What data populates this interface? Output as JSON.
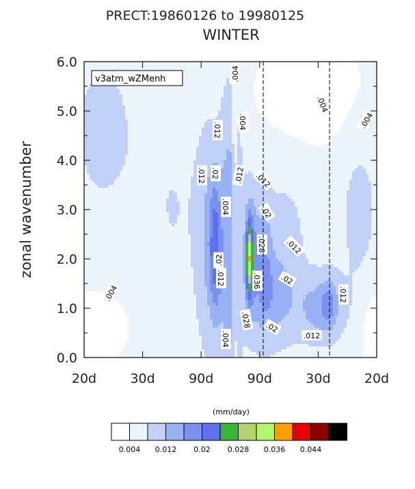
{
  "chart_data": {
    "type": "contour",
    "title": "PRECT:19860126 to 19980125",
    "subtitle": "WINTER",
    "case_label": "v3atm_wZMenh",
    "ylabel": "zonal wavenumber",
    "xlabel": "",
    "ylim": [
      0.0,
      6.0
    ],
    "yticks": [
      "0.0",
      "1.0",
      "2.0",
      "3.0",
      "4.0",
      "5.0",
      "6.0"
    ],
    "xticks": [
      "20d",
      "30d",
      "90d",
      "90d",
      "30d",
      "20d"
    ],
    "colorbar_units": "(mm/day)",
    "colorbar_labels": [
      "0.004",
      "0.012",
      "0.02",
      "0.028",
      "0.036",
      "0.044"
    ],
    "levels": [
      0.004,
      0.008,
      0.012,
      0.016,
      0.02,
      0.024,
      0.028,
      0.032,
      0.036,
      0.04,
      0.044,
      0.048
    ],
    "colors": [
      "#ffffff",
      "#ecf4fc",
      "#c0d0f6",
      "#98b0f4",
      "#7a90f0",
      "#6070ee",
      "#3cb43c",
      "#b4d26e",
      "#b4f46e",
      "#ffa000",
      "#e60000",
      "#8c0000",
      "#000000"
    ],
    "contour_labels": [
      ".004",
      ".004",
      ".004",
      ".004",
      ".004",
      ".004",
      ".004",
      ".012",
      ".012",
      ".012",
      ".012",
      ".012",
      ".012",
      ".012",
      ".012",
      ".02",
      ".02",
      ".02",
      ".02",
      ".02",
      ".028",
      ".028",
      ".036"
    ],
    "peak": {
      "wavenumber": 2.0,
      "value": 0.044
    }
  }
}
